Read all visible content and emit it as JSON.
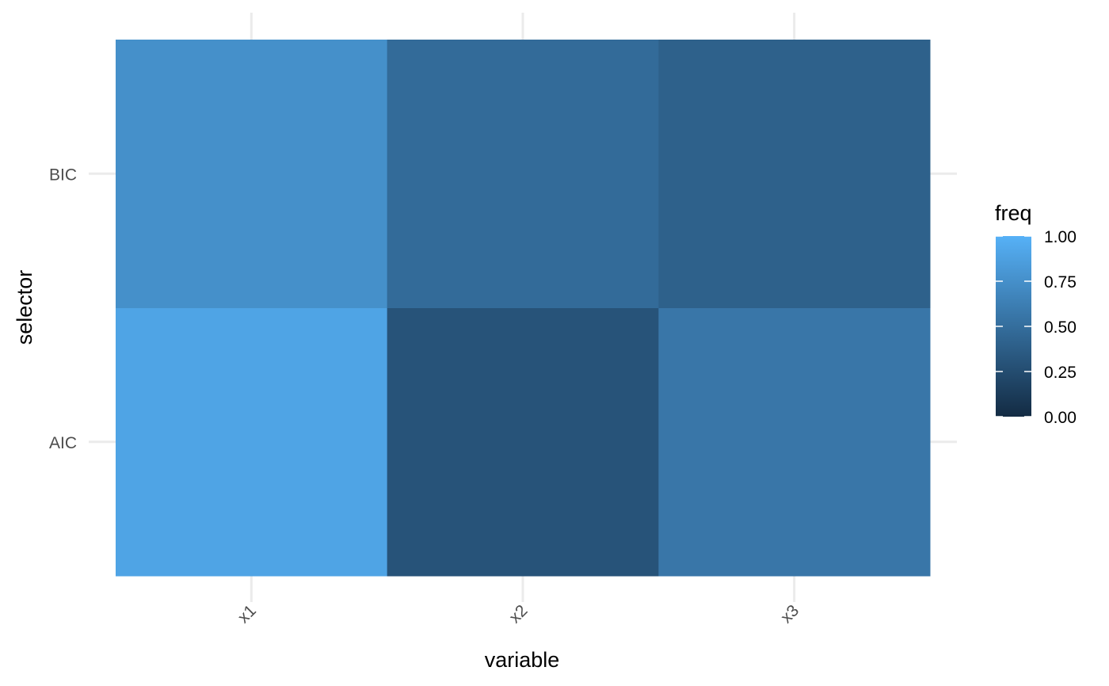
{
  "chart_data": {
    "type": "heatmap",
    "title": "",
    "xlabel": "variable",
    "ylabel": "selector",
    "x_categories": [
      "x1",
      "x2",
      "x3"
    ],
    "y_categories": [
      "AIC",
      "BIC"
    ],
    "values": [
      {
        "x": "x1",
        "y": "AIC",
        "value": 0.9
      },
      {
        "x": "x2",
        "y": "AIC",
        "value": 0.3
      },
      {
        "x": "x3",
        "y": "AIC",
        "value": 0.56
      },
      {
        "x": "x1",
        "y": "BIC",
        "value": 0.75
      },
      {
        "x": "x2",
        "y": "BIC",
        "value": 0.48
      },
      {
        "x": "x3",
        "y": "BIC",
        "value": 0.4
      }
    ],
    "legend": {
      "title": "freq",
      "placement": "right",
      "range": [
        0,
        1
      ],
      "ticks": [
        "0.00",
        "0.25",
        "0.50",
        "0.75",
        "1.00"
      ],
      "color_low": "#132B43",
      "color_high": "#56B1F7"
    },
    "grid": true
  }
}
